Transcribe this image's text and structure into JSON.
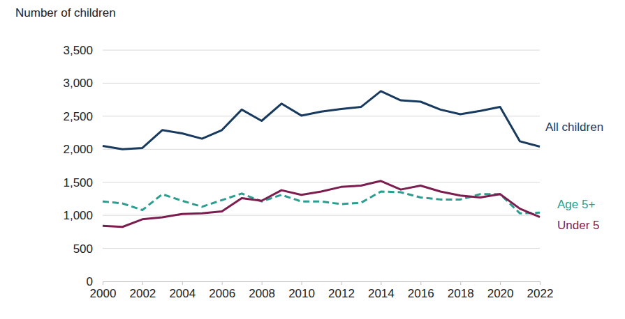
{
  "chart_data": {
    "type": "line",
    "y_label": "Number of children",
    "x": [
      2000,
      2001,
      2002,
      2003,
      2004,
      2005,
      2006,
      2007,
      2008,
      2009,
      2010,
      2011,
      2012,
      2013,
      2014,
      2015,
      2016,
      2017,
      2018,
      2019,
      2020,
      2021,
      2022
    ],
    "series": [
      {
        "name": "All children",
        "color": "#173a5e",
        "line_style": "solid",
        "values": [
          2050,
          2000,
          2020,
          2290,
          2240,
          2160,
          2290,
          2600,
          2430,
          2690,
          2510,
          2570,
          2610,
          2640,
          2880,
          2740,
          2720,
          2600,
          2530,
          2580,
          2640,
          2120,
          2040
        ]
      },
      {
        "name": "Age 5+",
        "color": "#2a9d8f",
        "line_style": "dashed",
        "values": [
          1210,
          1180,
          1080,
          1320,
          1220,
          1130,
          1230,
          1330,
          1210,
          1310,
          1210,
          1210,
          1170,
          1190,
          1360,
          1350,
          1270,
          1240,
          1240,
          1320,
          1320,
          1030,
          1040
        ]
      },
      {
        "name": "Under 5",
        "color": "#7b1d4e",
        "line_style": "solid",
        "values": [
          840,
          825,
          940,
          970,
          1020,
          1030,
          1060,
          1260,
          1220,
          1380,
          1310,
          1360,
          1430,
          1450,
          1520,
          1390,
          1450,
          1360,
          1300,
          1270,
          1320,
          1100,
          975
        ]
      }
    ],
    "xlim": [
      2000,
      2022
    ],
    "xticks": [
      2000,
      2002,
      2004,
      2006,
      2008,
      2010,
      2012,
      2014,
      2016,
      2018,
      2020,
      2022
    ],
    "ylim": [
      0,
      3500
    ],
    "yticks": [
      0,
      500,
      {
        "value": 1000,
        "label": "1,000"
      },
      {
        "value": 1500,
        "label": "1,500"
      },
      {
        "value": 2000,
        "label": "2,000"
      },
      {
        "value": 2500,
        "label": "2,500"
      },
      {
        "value": 3000,
        "label": "3,000"
      },
      {
        "value": 3500,
        "label": "3,500"
      }
    ],
    "grid": true
  }
}
